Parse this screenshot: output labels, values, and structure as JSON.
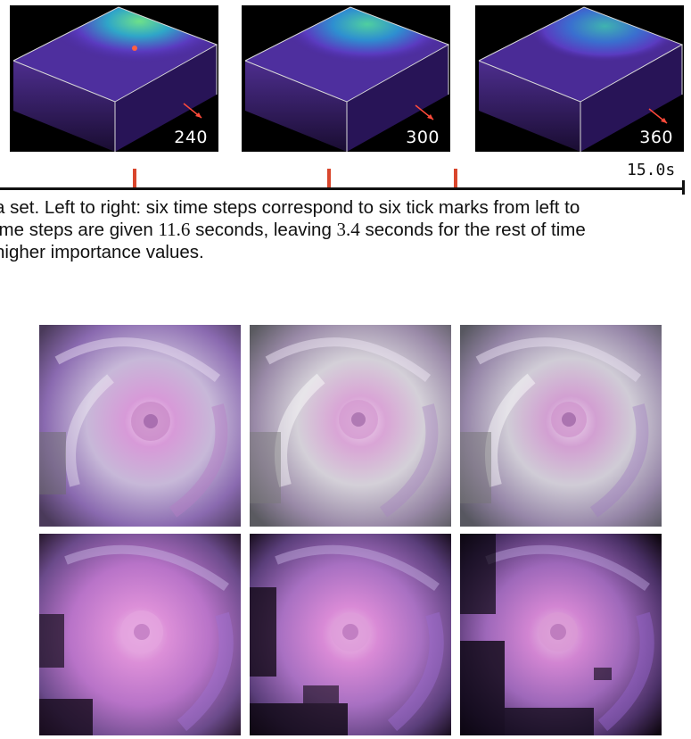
{
  "top_panels": [
    {
      "label": "240"
    },
    {
      "label": "300"
    },
    {
      "label": "360"
    }
  ],
  "timeline": {
    "end_label": "15.0s"
  },
  "caption": {
    "line1": "a set. Left to right: six time steps correspond to six tick marks from left to",
    "line2_a": "ime steps are given ",
    "line2_num1": "11.6",
    "line2_b": " seconds, leaving ",
    "line2_num2": "3.4",
    "line2_c": " seconds for the rest of time",
    "line3": " higher importance values."
  },
  "colors": {
    "tick": "#d9462d",
    "volume_purple": "#6a3fc2",
    "hurricane_pink": "#d77fd6"
  }
}
